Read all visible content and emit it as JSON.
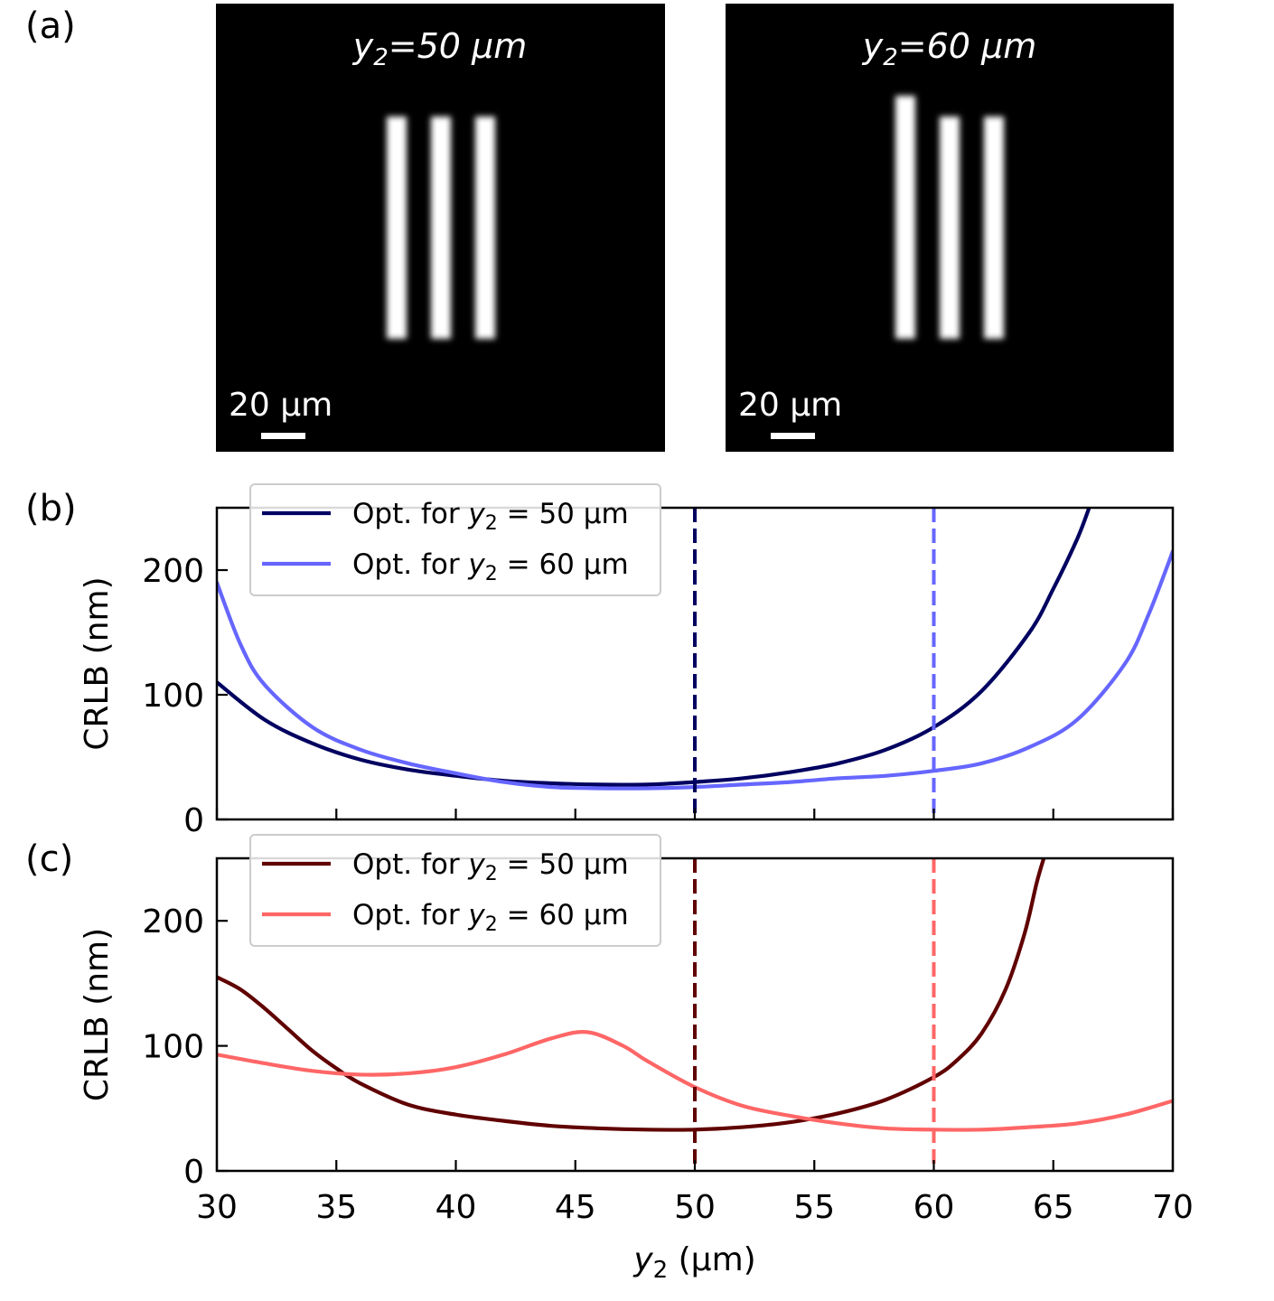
{
  "panels": {
    "a": "(a)",
    "b": "(b)",
    "c": "(c)"
  },
  "images": [
    {
      "title_var": "y",
      "title_sub": "2",
      "title_rest": "=50 μm",
      "scalebar": "20 μm",
      "bars": "equal"
    },
    {
      "title_var": "y",
      "title_sub": "2",
      "title_rest": "=60 μm",
      "scalebar": "20 μm",
      "bars": "shifted"
    }
  ],
  "chart_data": [
    {
      "type": "line",
      "panel": "(b)",
      "ylabel": "CRLB (nm)",
      "xlim": [
        30,
        70
      ],
      "ylim": [
        0,
        250
      ],
      "yticks": [
        0,
        100,
        200
      ],
      "xticks": [
        30,
        35,
        40,
        45,
        50,
        55,
        60,
        65,
        70
      ],
      "grid": false,
      "legend_position": "top-left",
      "series": [
        {
          "name": "Opt. for y2 = 50 μm",
          "legend_pre": "Opt. for ",
          "legend_var": "y",
          "legend_sub": "2",
          "legend_post": " = 50 μm",
          "color": "#000060",
          "x": [
            30,
            32,
            34,
            36,
            38,
            40,
            42,
            44,
            46,
            48,
            50,
            52,
            54,
            56,
            58,
            60,
            62,
            64,
            65,
            66,
            66.5
          ],
          "y": [
            110,
            80,
            61,
            48,
            40,
            35,
            31,
            29,
            28,
            28,
            30,
            33,
            38,
            45,
            56,
            74,
            103,
            150,
            185,
            225,
            250
          ]
        },
        {
          "name": "Opt. for y2 = 60 μm",
          "legend_pre": "Opt. for ",
          "legend_var": "y",
          "legend_sub": "2",
          "legend_post": " = 60 μm",
          "color": "#6666ff",
          "x": [
            30,
            31,
            32,
            34,
            36,
            38,
            40,
            42,
            44,
            46,
            48,
            50,
            52,
            54,
            56,
            58,
            60,
            62,
            64,
            66,
            68,
            69,
            70
          ],
          "y": [
            190,
            140,
            108,
            74,
            56,
            45,
            37,
            30,
            26,
            25,
            25,
            26,
            28,
            30,
            33,
            35,
            39,
            45,
            58,
            80,
            125,
            165,
            215
          ]
        }
      ],
      "vlines": [
        {
          "x": 50,
          "color": "#000060"
        },
        {
          "x": 60,
          "color": "#6666ff"
        }
      ]
    },
    {
      "type": "line",
      "panel": "(c)",
      "xlabel_var": "y",
      "xlabel_sub": "2",
      "xlabel_rest": " (μm)",
      "ylabel": "CRLB (nm)",
      "xlim": [
        30,
        70
      ],
      "ylim": [
        0,
        250
      ],
      "yticks": [
        0,
        100,
        200
      ],
      "xticks": [
        30,
        35,
        40,
        45,
        50,
        55,
        60,
        65,
        70
      ],
      "grid": false,
      "legend_position": "top-left",
      "series": [
        {
          "name": "Opt. for y2 = 50 μm",
          "legend_pre": "Opt. for ",
          "legend_var": "y",
          "legend_sub": "2",
          "legend_post": " = 50 μm",
          "color": "#600000",
          "x": [
            30,
            31,
            32,
            33,
            34,
            35,
            36,
            38,
            40,
            42,
            44,
            46,
            48,
            50,
            52,
            54,
            56,
            58,
            60,
            61,
            62,
            63,
            63.8,
            64.3,
            64.6
          ],
          "y": [
            155,
            145,
            130,
            113,
            96,
            82,
            70,
            53,
            45,
            40,
            36,
            34,
            33,
            33,
            35,
            39,
            46,
            57,
            75,
            89,
            110,
            145,
            190,
            230,
            250
          ]
        },
        {
          "name": "Opt. for y2 = 60 μm",
          "legend_pre": "Opt. for ",
          "legend_var": "y",
          "legend_sub": "2",
          "legend_post": " = 60 μm",
          "color": "#ff6666",
          "x": [
            30,
            32,
            34,
            36,
            38,
            40,
            42,
            44,
            45.5,
            47,
            48,
            50,
            52,
            54,
            56,
            58,
            60,
            62,
            64,
            66,
            68,
            70
          ],
          "y": [
            93,
            86,
            80,
            77,
            78,
            83,
            93,
            106,
            111,
            100,
            88,
            67,
            52,
            44,
            38,
            34,
            33,
            33,
            35,
            38,
            45,
            56
          ]
        }
      ],
      "vlines": [
        {
          "x": 50,
          "color": "#600000"
        },
        {
          "x": 60,
          "color": "#ff6666"
        }
      ]
    }
  ]
}
